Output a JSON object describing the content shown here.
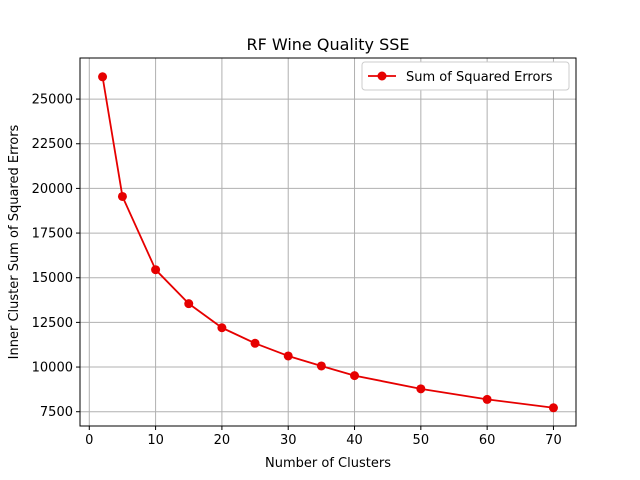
{
  "chart_data": {
    "type": "line",
    "title": "RF Wine Quality  SSE",
    "xlabel": "Number of Clusters",
    "ylabel": "Inner Cluster Sum of Squared Errors",
    "xlim": [
      -1.4,
      73.4
    ],
    "ylim": [
      6700,
      27300
    ],
    "xticks": [
      0,
      10,
      20,
      30,
      40,
      50,
      60,
      70
    ],
    "yticks": [
      7500,
      10000,
      12500,
      15000,
      17500,
      20000,
      22500,
      25000
    ],
    "grid": true,
    "legend_placement": "top-right",
    "series": [
      {
        "name": "Sum of Squared Errors",
        "color": "#e60000",
        "x": [
          2,
          5,
          10,
          15,
          20,
          25,
          30,
          35,
          40,
          50,
          60,
          70
        ],
        "y": [
          26250,
          19550,
          15450,
          13550,
          12200,
          11330,
          10620,
          10060,
          9520,
          8780,
          8190,
          7720
        ]
      }
    ]
  }
}
